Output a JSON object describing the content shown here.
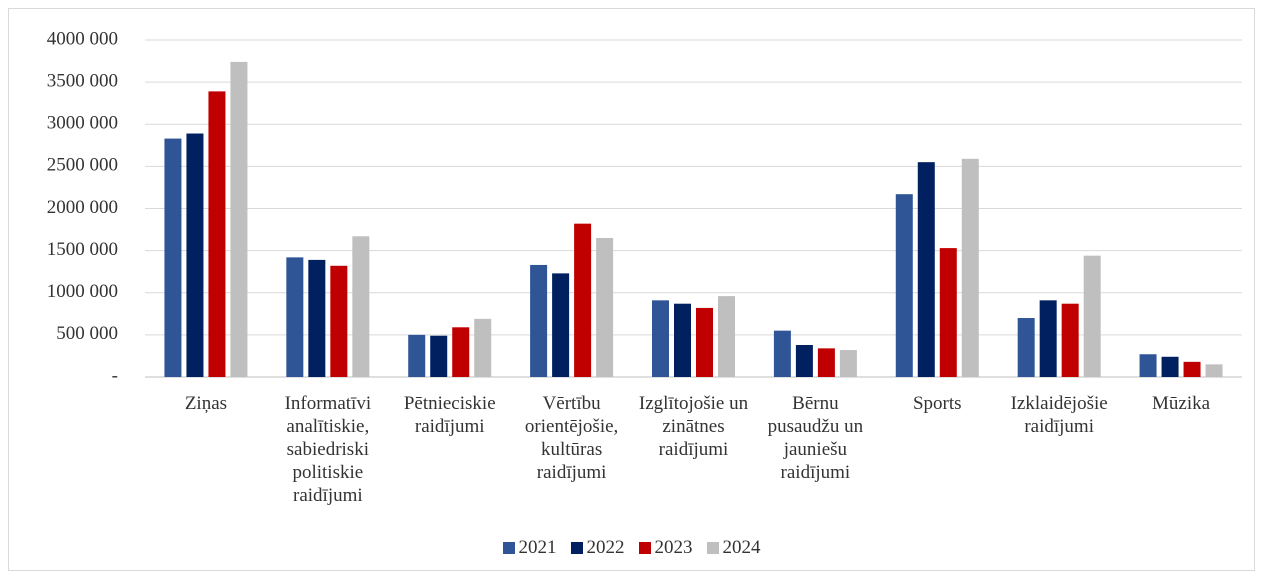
{
  "chart_data": {
    "type": "bar",
    "categories": [
      "Ziņas",
      "Informatīvi analītiskie, sabiedriski politiskie raidījumi",
      "Pētnieciskie raidījumi",
      "Vērtību orientējošie, kultūras raidījumi",
      "Izglītojošie un zinātnes raidījumi",
      "Bērnu pusaudžu un jauniešu raidījumi",
      "Sports",
      "Izklaidējošie raidījumi",
      "Mūzika"
    ],
    "series": [
      {
        "name": "2021",
        "color": "#2f5597",
        "values": [
          2830000,
          1420000,
          500000,
          1330000,
          910000,
          550000,
          2170000,
          700000,
          270000
        ]
      },
      {
        "name": "2022",
        "color": "#002060",
        "values": [
          2890000,
          1390000,
          490000,
          1230000,
          870000,
          380000,
          2550000,
          910000,
          240000
        ]
      },
      {
        "name": "2023",
        "color": "#c00000",
        "values": [
          3390000,
          1320000,
          590000,
          1820000,
          820000,
          340000,
          1530000,
          870000,
          180000
        ]
      },
      {
        "name": "2024",
        "color": "#bfbfbf",
        "values": [
          3740000,
          1670000,
          690000,
          1650000,
          960000,
          320000,
          2590000,
          1440000,
          150000
        ]
      }
    ],
    "ylim": [
      0,
      4000000
    ],
    "yticks": [
      {
        "value": 0,
        "label": "-"
      },
      {
        "value": 500000,
        "label": "500 000"
      },
      {
        "value": 1000000,
        "label": "1000 000"
      },
      {
        "value": 1500000,
        "label": "1500 000"
      },
      {
        "value": 2000000,
        "label": "2000 000"
      },
      {
        "value": 2500000,
        "label": "2500 000"
      },
      {
        "value": 3000000,
        "label": "3000 000"
      },
      {
        "value": 3500000,
        "label": "3500 000"
      },
      {
        "value": 4000000,
        "label": "4000 000"
      }
    ],
    "grid": true,
    "legend": "bottom"
  }
}
